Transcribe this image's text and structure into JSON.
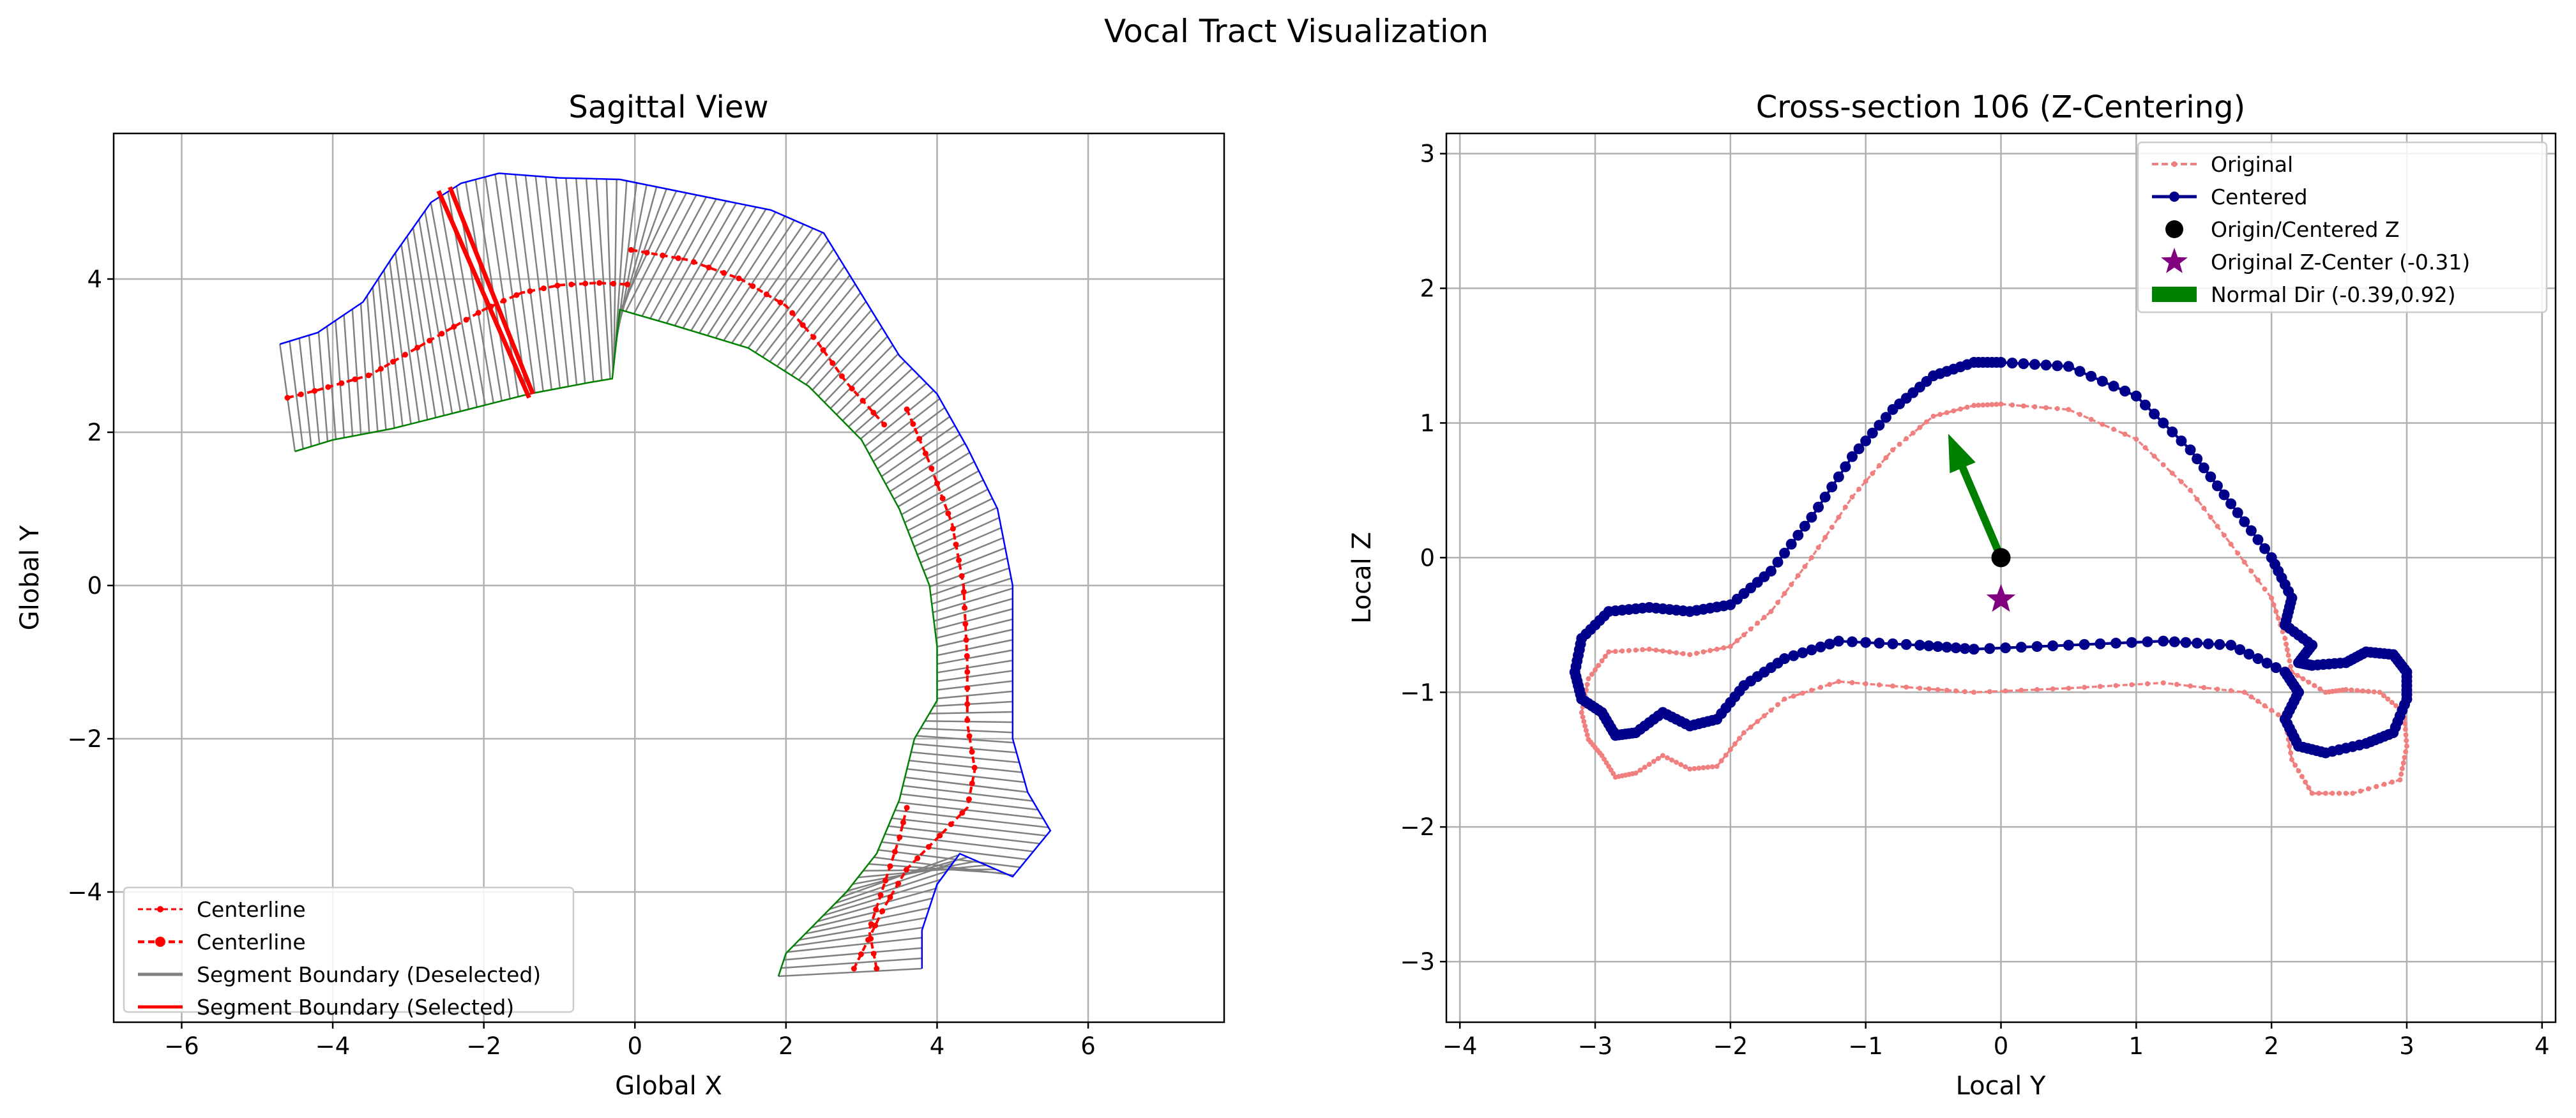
{
  "figure_title": "Vocal Tract Visualization",
  "colors": {
    "centerline": "#ff0000",
    "segment_deselected": "#808080",
    "segment_selected": "#ff0000",
    "upper_wall": "#0000ff",
    "lower_wall": "#008000",
    "original": "#f08080",
    "centered": "#00008b",
    "origin": "#000000",
    "original_center": "#800080",
    "normal": "#008000"
  },
  "chart_data": [
    {
      "type": "line",
      "title": "Sagittal View",
      "xlabel": "Global X",
      "ylabel": "Global Y",
      "xlim": [
        -6.9,
        7.8
      ],
      "ylim": [
        -5.7,
        5.9
      ],
      "xticks": [
        -6,
        -4,
        -2,
        0,
        2,
        4,
        6
      ],
      "yticks": [
        -4,
        -2,
        0,
        2,
        4
      ],
      "grid": true,
      "legend_position": "lower-left",
      "legend": [
        {
          "label": "Centerline",
          "style": "dashed-red-small"
        },
        {
          "label": "Centerline",
          "style": "dashed-red-dots"
        },
        {
          "label": "Segment Boundary (Deselected)",
          "style": "gray-line"
        },
        {
          "label": "Segment Boundary (Selected)",
          "style": "red-line"
        }
      ],
      "centerline_pieces": [
        [
          [
            -4.6,
            2.45
          ],
          [
            -4.2,
            2.55
          ],
          [
            -3.5,
            2.75
          ],
          [
            -2.8,
            3.15
          ],
          [
            -2.0,
            3.6
          ],
          [
            -1.5,
            3.82
          ],
          [
            -1.0,
            3.92
          ],
          [
            -0.5,
            3.95
          ],
          [
            -0.1,
            3.93
          ]
        ],
        [
          [
            -0.05,
            4.38
          ],
          [
            0.7,
            4.25
          ],
          [
            1.4,
            4.0
          ],
          [
            2.0,
            3.65
          ],
          [
            2.4,
            3.2
          ],
          [
            2.8,
            2.65
          ],
          [
            3.3,
            2.1
          ]
        ],
        [
          [
            3.6,
            2.3
          ],
          [
            3.9,
            1.6
          ],
          [
            4.2,
            0.8
          ],
          [
            4.35,
            0.0
          ],
          [
            4.4,
            -1.0
          ],
          [
            4.4,
            -1.8
          ],
          [
            4.5,
            -2.4
          ],
          [
            4.4,
            -2.9
          ],
          [
            4.0,
            -3.3
          ],
          [
            3.6,
            -3.7
          ],
          [
            3.3,
            -4.2
          ],
          [
            3.0,
            -4.8
          ],
          [
            2.9,
            -5.0
          ]
        ],
        [
          [
            3.2,
            -5.0
          ],
          [
            3.1,
            -4.5
          ],
          [
            3.5,
            -3.3
          ],
          [
            3.6,
            -2.9
          ]
        ]
      ],
      "upper_wall": [
        [
          -4.7,
          3.15
        ],
        [
          -4.2,
          3.3
        ],
        [
          -3.6,
          3.7
        ],
        [
          -3.2,
          4.3
        ],
        [
          -2.7,
          5.0
        ],
        [
          -2.3,
          5.25
        ],
        [
          -1.8,
          5.38
        ],
        [
          -1.0,
          5.32
        ],
        [
          -0.2,
          5.3
        ],
        [
          0.8,
          5.1
        ],
        [
          1.8,
          4.9
        ],
        [
          2.5,
          4.6
        ],
        [
          3.0,
          3.8
        ],
        [
          3.5,
          3.0
        ],
        [
          4.0,
          2.5
        ],
        [
          4.4,
          1.8
        ],
        [
          4.8,
          1.0
        ],
        [
          5.0,
          0.0
        ],
        [
          5.0,
          -1.0
        ],
        [
          5.0,
          -2.0
        ],
        [
          5.2,
          -2.7
        ],
        [
          5.5,
          -3.2
        ],
        [
          5.0,
          -3.8
        ],
        [
          4.3,
          -3.5
        ],
        [
          4.0,
          -3.9
        ],
        [
          3.8,
          -4.5
        ],
        [
          3.8,
          -5.0
        ]
      ],
      "lower_wall": [
        [
          -4.5,
          1.75
        ],
        [
          -4.0,
          1.9
        ],
        [
          -3.2,
          2.05
        ],
        [
          -2.2,
          2.3
        ],
        [
          -1.4,
          2.5
        ],
        [
          -0.6,
          2.65
        ],
        [
          -0.3,
          2.7
        ],
        [
          -0.2,
          3.6
        ],
        [
          0.5,
          3.4
        ],
        [
          1.5,
          3.1
        ],
        [
          2.3,
          2.6
        ],
        [
          3.0,
          1.9
        ],
        [
          3.5,
          1.0
        ],
        [
          3.9,
          0.0
        ],
        [
          4.0,
          -0.8
        ],
        [
          4.0,
          -1.5
        ],
        [
          3.7,
          -2.0
        ],
        [
          3.5,
          -2.8
        ],
        [
          3.2,
          -3.5
        ],
        [
          2.8,
          -4.0
        ],
        [
          2.3,
          -4.5
        ],
        [
          2.0,
          -4.8
        ],
        [
          1.9,
          -5.1
        ]
      ],
      "selected_segments": [
        [
          [
            -2.6,
            5.15
          ],
          [
            -1.4,
            2.45
          ]
        ],
        [
          [
            -2.45,
            5.2
          ],
          [
            -1.35,
            2.5
          ]
        ]
      ]
    },
    {
      "type": "scatter",
      "title": "Cross-section 106 (Z-Centering)",
      "xlabel": "Local Y",
      "ylabel": "Local Z",
      "xlim": [
        -4.1,
        4.1
      ],
      "ylim": [
        -3.45,
        3.15
      ],
      "xticks": [
        -4,
        -3,
        -2,
        -1,
        0,
        1,
        2,
        3,
        4
      ],
      "yticks": [
        -3,
        -2,
        -1,
        0,
        1,
        2,
        3
      ],
      "grid": true,
      "legend_position": "upper-right",
      "legend": [
        {
          "label": "Original",
          "style": "dashed-lightcoral"
        },
        {
          "label": "Centered",
          "style": "darkblue-line-dots"
        },
        {
          "label": "Origin/Centered Z",
          "style": "black-dot"
        },
        {
          "label": "Original Z-Center (-0.31)",
          "style": "purple-star"
        },
        {
          "label": "Normal Dir (-0.39,0.92)",
          "style": "green-patch"
        }
      ],
      "centered_contour": [
        [
          0.0,
          1.45
        ],
        [
          0.5,
          1.42
        ],
        [
          1.0,
          1.2
        ],
        [
          1.4,
          0.8
        ],
        [
          1.7,
          0.4
        ],
        [
          2.0,
          0.0
        ],
        [
          2.15,
          -0.3
        ],
        [
          2.1,
          -0.5
        ],
        [
          2.3,
          -0.65
        ],
        [
          2.2,
          -0.78
        ],
        [
          2.3,
          -0.8
        ],
        [
          2.55,
          -0.78
        ],
        [
          2.7,
          -0.7
        ],
        [
          2.9,
          -0.72
        ],
        [
          3.0,
          -0.85
        ],
        [
          3.0,
          -1.05
        ],
        [
          2.9,
          -1.3
        ],
        [
          2.7,
          -1.38
        ],
        [
          2.4,
          -1.45
        ],
        [
          2.2,
          -1.4
        ],
        [
          2.1,
          -1.2
        ],
        [
          2.2,
          -1.0
        ],
        [
          2.1,
          -0.85
        ],
        [
          1.7,
          -0.65
        ],
        [
          1.2,
          -0.62
        ],
        [
          0.5,
          -0.65
        ],
        [
          -0.2,
          -0.68
        ],
        [
          -0.6,
          -0.65
        ],
        [
          -1.2,
          -0.62
        ],
        [
          -1.6,
          -0.75
        ],
        [
          -1.9,
          -0.95
        ],
        [
          -2.1,
          -1.2
        ],
        [
          -2.3,
          -1.25
        ],
        [
          -2.5,
          -1.15
        ],
        [
          -2.7,
          -1.3
        ],
        [
          -2.85,
          -1.32
        ],
        [
          -2.95,
          -1.15
        ],
        [
          -3.1,
          -1.05
        ],
        [
          -3.15,
          -0.85
        ],
        [
          -3.1,
          -0.6
        ],
        [
          -2.9,
          -0.4
        ],
        [
          -2.6,
          -0.37
        ],
        [
          -2.3,
          -0.4
        ],
        [
          -2.0,
          -0.35
        ],
        [
          -1.7,
          -0.1
        ],
        [
          -1.4,
          0.3
        ],
        [
          -1.1,
          0.75
        ],
        [
          -0.8,
          1.1
        ],
        [
          -0.5,
          1.35
        ],
        [
          -0.2,
          1.45
        ],
        [
          0.0,
          1.45
        ]
      ],
      "original_contour": [
        [
          0.0,
          1.14
        ],
        [
          0.5,
          1.1
        ],
        [
          1.0,
          0.88
        ],
        [
          1.4,
          0.5
        ],
        [
          1.7,
          0.1
        ],
        [
          2.0,
          -0.3
        ],
        [
          2.1,
          -0.6
        ],
        [
          2.15,
          -0.85
        ],
        [
          2.4,
          -1.0
        ],
        [
          2.55,
          -0.98
        ],
        [
          2.8,
          -1.0
        ],
        [
          2.98,
          -1.15
        ],
        [
          3.0,
          -1.4
        ],
        [
          2.95,
          -1.65
        ],
        [
          2.6,
          -1.75
        ],
        [
          2.3,
          -1.75
        ],
        [
          2.15,
          -1.5
        ],
        [
          2.1,
          -1.2
        ],
        [
          1.8,
          -1.0
        ],
        [
          1.2,
          -0.93
        ],
        [
          0.5,
          -0.97
        ],
        [
          -0.2,
          -1.0
        ],
        [
          -0.6,
          -0.97
        ],
        [
          -1.2,
          -0.92
        ],
        [
          -1.6,
          -1.05
        ],
        [
          -1.9,
          -1.3
        ],
        [
          -2.1,
          -1.55
        ],
        [
          -2.3,
          -1.57
        ],
        [
          -2.5,
          -1.47
        ],
        [
          -2.7,
          -1.6
        ],
        [
          -2.85,
          -1.63
        ],
        [
          -2.95,
          -1.47
        ],
        [
          -3.05,
          -1.35
        ],
        [
          -3.1,
          -1.15
        ],
        [
          -3.05,
          -0.9
        ],
        [
          -2.9,
          -0.7
        ],
        [
          -2.6,
          -0.68
        ],
        [
          -2.3,
          -0.72
        ],
        [
          -2.0,
          -0.66
        ],
        [
          -1.7,
          -0.4
        ],
        [
          -1.4,
          0.0
        ],
        [
          -1.1,
          0.45
        ],
        [
          -0.8,
          0.8
        ],
        [
          -0.5,
          1.05
        ],
        [
          -0.2,
          1.13
        ],
        [
          0.0,
          1.14
        ]
      ],
      "bridge": [
        [
          -0.2,
          -0.68
        ],
        [
          1.2,
          -0.62
        ]
      ],
      "origin": [
        0,
        0
      ],
      "original_center": [
        0,
        -0.31
      ],
      "normal_dir": [
        -0.39,
        0.92
      ],
      "arrow_length": 1.0
    }
  ]
}
